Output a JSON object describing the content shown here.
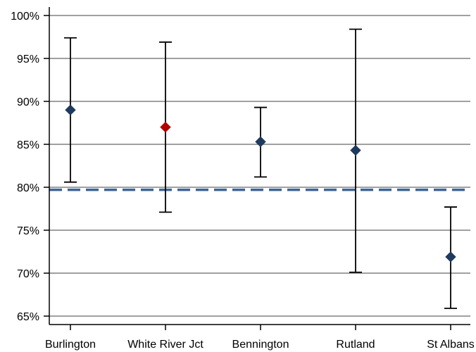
{
  "chart_data": {
    "type": "scatter",
    "title": "",
    "xlabel": "",
    "ylabel": "",
    "categories": [
      "Burlington",
      "White River Jct",
      "Bennington",
      "Rutland",
      "St Albans"
    ],
    "values": [
      89.0,
      87.0,
      85.3,
      84.3,
      71.9
    ],
    "error_low": [
      80.6,
      77.1,
      81.2,
      70.1,
      65.9
    ],
    "error_high": [
      97.4,
      96.9,
      89.3,
      98.4,
      77.7
    ],
    "point_colors": [
      "#1f3a5f",
      "#b00000",
      "#1f3a5f",
      "#1f3a5f",
      "#1f3a5f"
    ],
    "ylim": [
      64,
      100
    ],
    "yticks": [
      65,
      70,
      75,
      80,
      85,
      90,
      95,
      100
    ],
    "ytick_labels": [
      "65%",
      "70%",
      "75%",
      "80%",
      "85%",
      "90%",
      "95%",
      "100%"
    ],
    "reference_line": {
      "value": 79.7,
      "color": "#3d6496",
      "style": "dashed"
    },
    "grid": true,
    "gridline_color": "#808080"
  }
}
